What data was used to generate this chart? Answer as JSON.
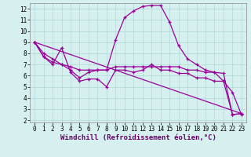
{
  "xlabel": "Windchill (Refroidissement éolien,°C)",
  "xlim": [
    -0.5,
    23.5
  ],
  "ylim": [
    1.8,
    12.5
  ],
  "xticks": [
    0,
    1,
    2,
    3,
    4,
    5,
    6,
    7,
    8,
    9,
    10,
    11,
    12,
    13,
    14,
    15,
    16,
    17,
    18,
    19,
    20,
    21,
    22,
    23
  ],
  "yticks": [
    2,
    3,
    4,
    5,
    6,
    7,
    8,
    9,
    10,
    11,
    12
  ],
  "background_color": "#d6f0f0",
  "grid_color": "#b0d8d8",
  "line_color": "#990099",
  "line1_x": [
    0,
    1,
    2,
    3,
    4,
    5,
    6,
    7,
    8,
    9,
    10,
    11,
    12,
    13,
    14,
    15,
    16,
    17,
    18,
    19,
    20,
    21,
    22,
    23
  ],
  "line1_y": [
    9.0,
    7.7,
    7.0,
    8.5,
    6.3,
    5.5,
    5.7,
    5.7,
    5.0,
    6.5,
    6.5,
    6.3,
    6.5,
    7.0,
    6.5,
    6.5,
    6.2,
    6.2,
    5.8,
    5.8,
    5.5,
    5.5,
    2.5,
    2.6
  ],
  "line2_x": [
    0,
    1,
    2,
    3,
    4,
    5,
    6,
    7,
    8,
    9,
    10,
    11,
    12,
    13,
    14,
    15,
    16,
    17,
    18,
    19,
    20,
    21,
    22,
    23
  ],
  "line2_y": [
    9.0,
    7.7,
    7.2,
    7.0,
    6.5,
    5.8,
    6.3,
    6.5,
    6.5,
    9.2,
    11.2,
    11.8,
    12.2,
    12.3,
    12.3,
    10.8,
    8.7,
    7.5,
    7.0,
    6.5,
    6.3,
    5.5,
    4.5,
    2.5
  ],
  "line3_x": [
    0,
    1,
    2,
    3,
    4,
    5,
    6,
    7,
    8,
    9,
    10,
    11,
    12,
    13,
    14,
    15,
    16,
    17,
    18,
    19,
    20,
    21,
    22,
    23
  ],
  "line3_y": [
    9.0,
    8.0,
    7.5,
    7.0,
    6.8,
    6.5,
    6.5,
    6.5,
    6.5,
    6.8,
    6.8,
    6.8,
    6.8,
    6.8,
    6.8,
    6.8,
    6.8,
    6.5,
    6.5,
    6.3,
    6.3,
    6.2,
    2.5,
    2.6
  ],
  "line4_x": [
    0,
    23
  ],
  "line4_y": [
    9.0,
    2.6
  ],
  "fontsize_axis": 6.5,
  "fontsize_ticks": 5.5
}
